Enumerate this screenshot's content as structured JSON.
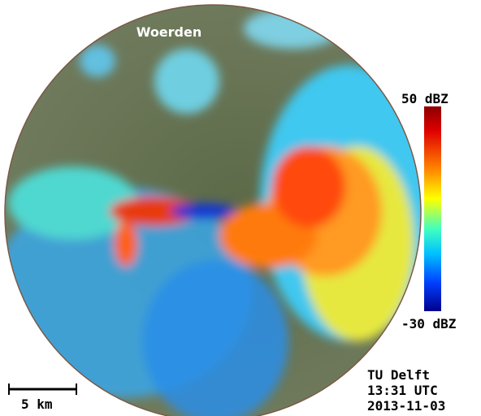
{
  "map": {
    "place_label": "Woerden",
    "colorbar": {
      "max_label": "50 dBZ",
      "min_label": "-30 dBZ"
    },
    "scale_bar": {
      "label": "5 km"
    },
    "credits": {
      "source": "TU Delft",
      "time": "13:31 UTC",
      "date": "2013-11-03"
    }
  }
}
